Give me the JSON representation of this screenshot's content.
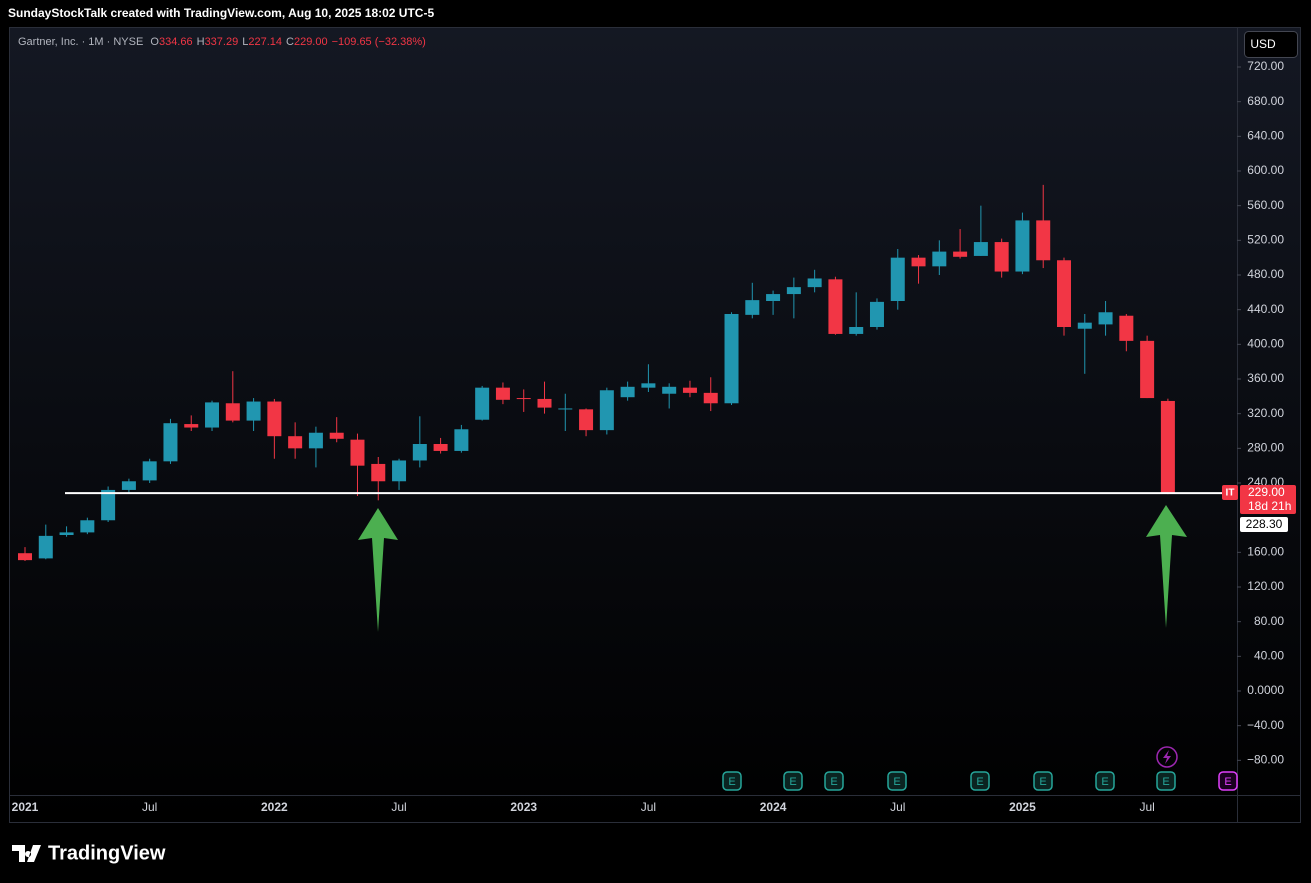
{
  "header": "SundayStockTalk created with TradingView.com, Aug 10, 2025 18:02 UTC-5",
  "footer": "TradingView",
  "currency": "USD",
  "chart_data": {
    "type": "candlestick",
    "legend": {
      "name": "Gartner, Inc. · 1M · NYSE",
      "fields": [
        {
          "key": "O",
          "value": "334.66"
        },
        {
          "key": "H",
          "value": "337.29"
        },
        {
          "key": "L",
          "value": "227.14"
        },
        {
          "key": "C",
          "value": "229.00"
        }
      ],
      "change": "−109.65 (−32.38%)"
    },
    "categories": [
      "2021",
      null,
      null,
      null,
      null,
      null,
      "Jul",
      null,
      null,
      null,
      null,
      null,
      "2022",
      null,
      null,
      null,
      null,
      null,
      "Jul",
      null,
      null,
      null,
      null,
      null,
      "2023",
      null,
      null,
      null,
      null,
      null,
      "Jul",
      null,
      null,
      null,
      null,
      null,
      "2024",
      null,
      null,
      null,
      null,
      null,
      "Jul",
      null,
      null,
      null,
      null,
      null,
      "2025",
      null,
      null,
      null,
      null,
      null,
      "Jul",
      null
    ],
    "open": [
      159,
      153,
      180,
      183,
      197,
      232,
      243,
      265,
      308,
      304,
      332,
      312,
      334,
      294,
      280,
      298,
      290,
      262,
      242,
      266,
      285,
      277,
      313,
      350,
      338,
      337,
      325,
      325,
      301,
      339,
      350,
      343,
      350,
      344,
      332,
      434,
      450,
      458,
      466,
      475,
      412,
      420,
      450,
      500,
      490,
      507,
      502,
      518,
      484,
      543,
      497,
      418,
      423,
      433,
      404,
      334.66
    ],
    "high": [
      166,
      192,
      190,
      200,
      236,
      245,
      268,
      314,
      318,
      335,
      369,
      338,
      337,
      310,
      305,
      316,
      297,
      270,
      268,
      317,
      292,
      307,
      352,
      356,
      348,
      357,
      343,
      326,
      350,
      357,
      377,
      355,
      358,
      362,
      437,
      471,
      462,
      477,
      486,
      478,
      460,
      453,
      510,
      503,
      520,
      533,
      560,
      522,
      552,
      584,
      500,
      435,
      450,
      435,
      410,
      337.29
    ],
    "low": [
      150,
      152,
      178,
      181,
      195,
      228,
      240,
      262,
      300,
      300,
      310,
      300,
      268,
      268,
      258,
      287,
      225,
      220,
      232,
      258,
      274,
      275,
      312,
      331,
      322,
      320,
      300,
      294,
      296,
      335,
      345,
      326,
      339,
      323,
      330,
      430,
      434,
      430,
      460,
      411,
      410,
      417,
      440,
      470,
      480,
      499,
      502,
      477,
      481,
      488,
      410,
      366,
      410,
      392,
      338,
      227.14
    ],
    "close": [
      151,
      179,
      183,
      197,
      232,
      242,
      265,
      309,
      304,
      333,
      312,
      334,
      294,
      280,
      298,
      291,
      260,
      242,
      266,
      285,
      277,
      302,
      350,
      336,
      337,
      327,
      326,
      301,
      347,
      351,
      355,
      351,
      344,
      332,
      435,
      451,
      458,
      466,
      476,
      412,
      420,
      449,
      500,
      490,
      507,
      501,
      518,
      484,
      543,
      497,
      420,
      425,
      437,
      404,
      338,
      229
    ],
    "up_color": "#2196b0",
    "down_color": "#f23645",
    "ylim": [
      -120,
      765
    ],
    "yticks": [
      {
        "value": 720,
        "label": "720.00"
      },
      {
        "value": 680,
        "label": "680.00"
      },
      {
        "value": 640,
        "label": "640.00"
      },
      {
        "value": 600,
        "label": "600.00"
      },
      {
        "value": 560,
        "label": "560.00"
      },
      {
        "value": 520,
        "label": "520.00"
      },
      {
        "value": 480,
        "label": "480.00"
      },
      {
        "value": 440,
        "label": "440.00"
      },
      {
        "value": 400,
        "label": "400.00"
      },
      {
        "value": 360,
        "label": "360.00"
      },
      {
        "value": 320,
        "label": "320.00"
      },
      {
        "value": 280,
        "label": "280.00"
      },
      {
        "value": 240,
        "label": "240.00"
      },
      {
        "value": 160,
        "label": "160.00"
      },
      {
        "value": 120,
        "label": "120.00"
      },
      {
        "value": 80,
        "label": "80.00"
      },
      {
        "value": 40,
        "label": "40.00"
      },
      {
        "value": 0,
        "label": "0.0000"
      },
      {
        "value": -40,
        "label": "−40.00"
      },
      {
        "value": -80,
        "label": "−80.00"
      }
    ],
    "price_label": {
      "symbol": "IT",
      "price": "229.00",
      "countdown": "18d 21h"
    },
    "hline": {
      "value": 228.3,
      "label": "228.30",
      "color": "#ffffff"
    },
    "earnings_marker": "E"
  }
}
